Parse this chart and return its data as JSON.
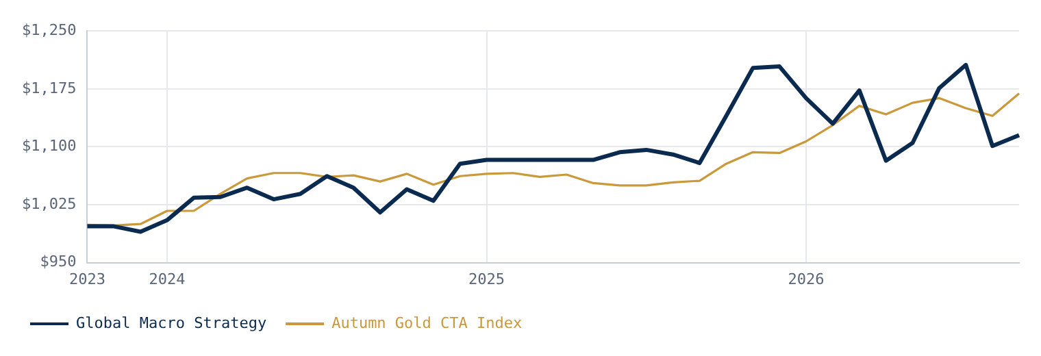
{
  "chart_data": {
    "type": "line",
    "categories": [
      "2023",
      null,
      null,
      "2024",
      null,
      null,
      null,
      null,
      null,
      null,
      null,
      null,
      null,
      null,
      null,
      "2025",
      null,
      null,
      null,
      null,
      null,
      null,
      null,
      null,
      null,
      null,
      null,
      "2026",
      null,
      null,
      null,
      null,
      null,
      null,
      null,
      null
    ],
    "series": [
      {
        "name": "Global Macro Strategy",
        "color": "#0b2a4f",
        "values": [
          997,
          997,
          990,
          1005,
          1034,
          1035,
          1047,
          1032,
          1039,
          1062,
          1047,
          1015,
          1045,
          1030,
          1078,
          1083,
          1083,
          1083,
          1083,
          1083,
          1093,
          1096,
          1090,
          1079,
          1140,
          1202,
          1204,
          1163,
          1130,
          1173,
          1082,
          1105,
          1176,
          1206,
          1101,
          1115
        ]
      },
      {
        "name": "Autumn Gold CTA Index",
        "color": "#c9993a",
        "values": [
          999,
          998,
          1000,
          1017,
          1017,
          1039,
          1059,
          1066,
          1066,
          1061,
          1063,
          1055,
          1065,
          1051,
          1062,
          1065,
          1066,
          1061,
          1064,
          1053,
          1050,
          1050,
          1054,
          1056,
          1078,
          1093,
          1092,
          1107,
          1128,
          1153,
          1142,
          1157,
          1163,
          1150,
          1140,
          1169
        ]
      }
    ],
    "ylim": [
      950,
      1250
    ],
    "yticks": [
      {
        "value": 950,
        "label": "$950"
      },
      {
        "value": 1025,
        "label": "$1,025"
      },
      {
        "value": 1100,
        "label": "$1,100"
      },
      {
        "value": 1175,
        "label": "$1,175"
      },
      {
        "value": 1250,
        "label": "$1,250"
      }
    ],
    "grid": true,
    "legend": "bottom",
    "marker": "none",
    "line_style": "solid"
  }
}
